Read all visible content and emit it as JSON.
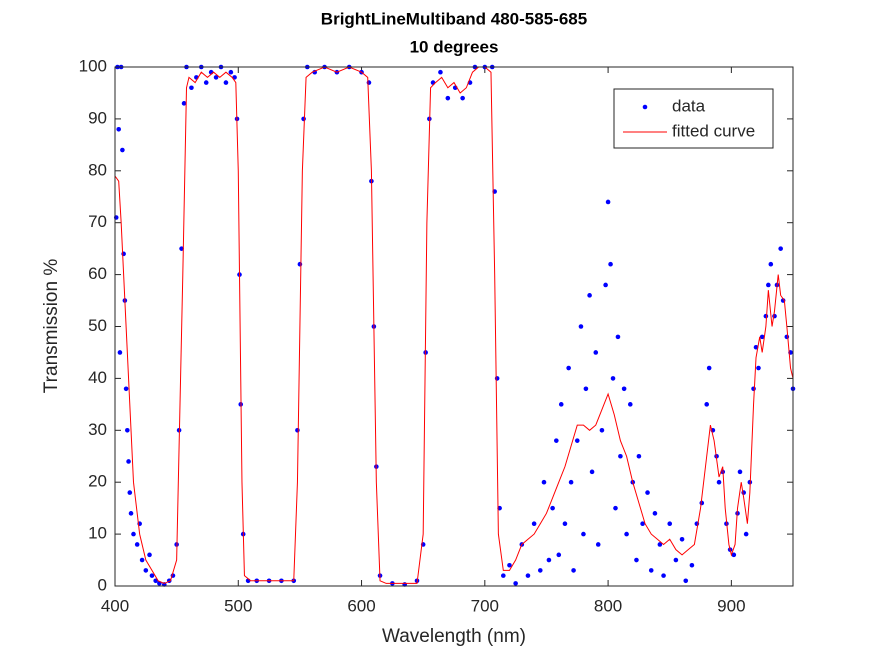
{
  "chart_data": {
    "type": "scatter",
    "title": [
      "BrightLineMultiband 480-585-685",
      "10 degrees"
    ],
    "x_label": "Wavelength (nm)",
    "y_label": "Transmission %",
    "xlim": [
      400,
      950
    ],
    "ylim": [
      0,
      100
    ],
    "xticks": [
      400,
      500,
      600,
      700,
      800,
      900
    ],
    "yticks": [
      0,
      10,
      20,
      30,
      40,
      50,
      60,
      70,
      80,
      90,
      100
    ],
    "grid": false,
    "legend": "northeast",
    "series": [
      {
        "name": "data",
        "color": "#0000ff",
        "mode": "markers",
        "x": [
          401,
          402,
          403,
          405,
          406,
          404,
          407,
          408,
          409,
          410,
          411,
          412,
          413,
          415,
          418,
          420,
          422,
          425,
          428,
          430,
          433,
          436,
          440,
          444,
          447,
          450,
          452,
          454,
          456,
          458,
          462,
          466,
          470,
          474,
          478,
          482,
          486,
          490,
          494,
          497,
          499,
          501,
          502,
          504,
          508,
          515,
          525,
          535,
          545,
          548,
          550,
          553,
          556,
          562,
          570,
          580,
          590,
          600,
          606,
          608,
          610,
          612,
          615,
          625,
          635,
          645,
          650,
          652,
          655,
          658,
          664,
          670,
          676,
          682,
          688,
          692,
          700,
          706,
          708,
          710,
          712,
          715,
          720,
          725,
          730,
          735,
          740,
          745,
          748,
          752,
          755,
          758,
          760,
          762,
          765,
          768,
          770,
          772,
          775,
          778,
          780,
          782,
          785,
          787,
          790,
          792,
          795,
          798,
          800,
          802,
          804,
          806,
          808,
          810,
          813,
          815,
          818,
          820,
          823,
          825,
          828,
          832,
          835,
          838,
          842,
          845,
          850,
          855,
          860,
          863,
          868,
          872,
          876,
          880,
          882,
          885,
          888,
          890,
          893,
          896,
          899,
          902,
          905,
          907,
          910,
          912,
          915,
          918,
          920,
          922,
          925,
          928,
          930,
          932,
          935,
          937,
          940,
          942,
          945,
          948,
          950
        ],
        "values": [
          71,
          100,
          88,
          100,
          84,
          45,
          64,
          55,
          38,
          30,
          24,
          18,
          14,
          10,
          8,
          12,
          5,
          3,
          6,
          2,
          1,
          0.5,
          0.3,
          1,
          2,
          8,
          30,
          65,
          93,
          100,
          96,
          98,
          100,
          97,
          99,
          98,
          100,
          97,
          99,
          98,
          90,
          60,
          35,
          10,
          1,
          1,
          1,
          1,
          1,
          30,
          62,
          90,
          100,
          99,
          100,
          99,
          100,
          99,
          97,
          78,
          50,
          23,
          2,
          0.5,
          0.3,
          1,
          8,
          45,
          90,
          97,
          99,
          94,
          96,
          94,
          97,
          100,
          100,
          100,
          76,
          40,
          15,
          2,
          4,
          0.5,
          8,
          2,
          12,
          3,
          20,
          5,
          15,
          28,
          6,
          35,
          12,
          42,
          20,
          3,
          28,
          50,
          10,
          38,
          56,
          22,
          45,
          8,
          30,
          58,
          74,
          62,
          40,
          15,
          48,
          25,
          38,
          10,
          35,
          20,
          5,
          25,
          12,
          18,
          3,
          14,
          8,
          2,
          12,
          5,
          9,
          1,
          4,
          12,
          16,
          35,
          42,
          30,
          25,
          20,
          22,
          12,
          7,
          6,
          14,
          22,
          18,
          10,
          20,
          38,
          46,
          42,
          48,
          52,
          58,
          62,
          52,
          58,
          65,
          55,
          48,
          45,
          38
        ]
      },
      {
        "name": "fitted curve",
        "color": "#ff0000",
        "mode": "line",
        "x": [
          400,
          403,
          405,
          410,
          415,
          420,
          425,
          430,
          435,
          440,
          445,
          450,
          455,
          458,
          460,
          465,
          470,
          475,
          480,
          485,
          490,
          495,
          498,
          500,
          503,
          505,
          510,
          545,
          548,
          552,
          555,
          560,
          570,
          580,
          590,
          600,
          605,
          608,
          612,
          615,
          620,
          645,
          650,
          653,
          656,
          660,
          665,
          670,
          675,
          680,
          685,
          690,
          695,
          700,
          705,
          708,
          711,
          715,
          720,
          725,
          730,
          735,
          740,
          745,
          750,
          755,
          760,
          765,
          770,
          775,
          780,
          785,
          790,
          795,
          800,
          805,
          810,
          815,
          820,
          825,
          830,
          835,
          840,
          845,
          850,
          855,
          860,
          865,
          870,
          875,
          880,
          883,
          886,
          890,
          893,
          895,
          898,
          900,
          903,
          905,
          908,
          910,
          913,
          915,
          918,
          920,
          923,
          925,
          928,
          930,
          933,
          935,
          938,
          940,
          943,
          945,
          948,
          950
        ],
        "values": [
          79,
          78,
          70,
          45,
          20,
          10,
          5,
          3,
          1,
          0.5,
          1,
          5,
          60,
          96,
          98,
          97,
          99,
          98,
          99,
          98,
          99,
          98,
          97,
          80,
          20,
          2,
          1,
          1,
          20,
          80,
          98,
          99,
          100,
          99,
          100,
          99,
          98,
          80,
          20,
          1,
          0.5,
          0.5,
          10,
          70,
          96,
          97,
          98,
          96,
          97,
          95,
          96,
          99,
          100,
          100,
          99,
          60,
          10,
          3,
          3,
          5,
          8,
          9,
          10,
          12,
          14,
          17,
          20,
          23,
          27,
          31,
          31,
          30,
          31,
          34,
          37,
          33,
          28,
          25,
          20,
          16,
          12,
          10,
          9,
          8,
          9,
          7,
          6,
          7,
          8,
          15,
          25,
          31,
          28,
          21,
          23,
          15,
          8,
          6,
          8,
          15,
          20,
          17,
          12,
          18,
          35,
          44,
          48,
          45,
          50,
          57,
          50,
          53,
          60,
          56,
          55,
          50,
          42,
          40
        ]
      }
    ]
  }
}
